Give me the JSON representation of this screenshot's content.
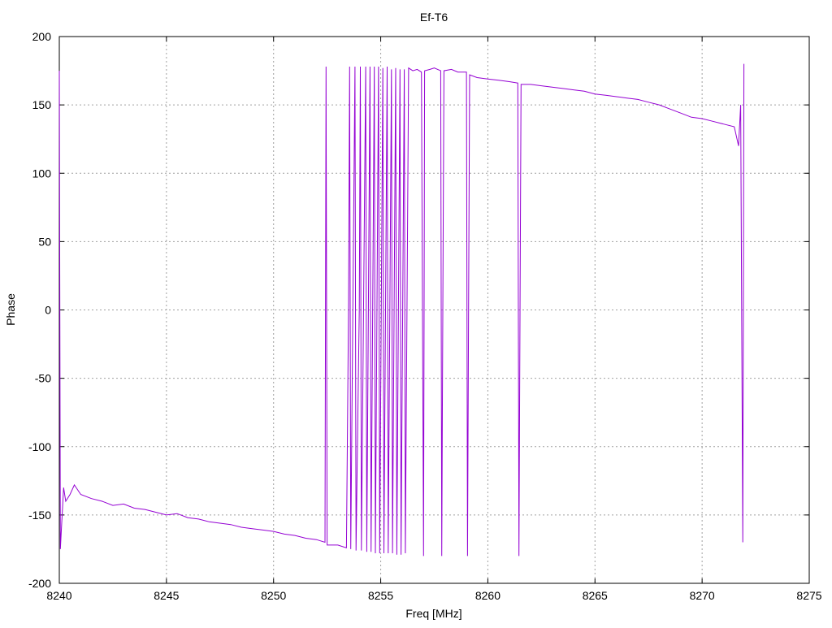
{
  "chart_data": {
    "type": "line",
    "title": "Ef-T6",
    "xlabel": "Freq [MHz]",
    "ylabel": "Phase",
    "xlim": [
      8240,
      8275
    ],
    "ylim": [
      -200,
      200
    ],
    "xticks": [
      8240,
      8245,
      8250,
      8255,
      8260,
      8265,
      8270,
      8275
    ],
    "yticks": [
      -200,
      -150,
      -100,
      -50,
      0,
      50,
      100,
      150,
      200
    ],
    "grid": true,
    "legend": "none",
    "line_color": "#9400d3",
    "series": [
      {
        "points": [
          [
            8240.0,
            175
          ],
          [
            8240.05,
            -175
          ],
          [
            8240.1,
            -160
          ],
          [
            8240.2,
            -130
          ],
          [
            8240.3,
            -140
          ],
          [
            8240.5,
            -135
          ],
          [
            8240.7,
            -128
          ],
          [
            8241.0,
            -135
          ],
          [
            8241.5,
            -138
          ],
          [
            8242.0,
            -140
          ],
          [
            8242.5,
            -143
          ],
          [
            8243.0,
            -142
          ],
          [
            8243.5,
            -145
          ],
          [
            8244.0,
            -146
          ],
          [
            8244.5,
            -148
          ],
          [
            8245.0,
            -150
          ],
          [
            8245.5,
            -149
          ],
          [
            8246.0,
            -152
          ],
          [
            8246.5,
            -153
          ],
          [
            8247.0,
            -155
          ],
          [
            8247.5,
            -156
          ],
          [
            8248.0,
            -157
          ],
          [
            8248.5,
            -159
          ],
          [
            8249.0,
            -160
          ],
          [
            8249.5,
            -161
          ],
          [
            8250.0,
            -162
          ],
          [
            8250.5,
            -164
          ],
          [
            8251.0,
            -165
          ],
          [
            8251.5,
            -167
          ],
          [
            8252.0,
            -168
          ],
          [
            8252.4,
            -170
          ],
          [
            8252.45,
            178
          ],
          [
            8252.5,
            -172
          ],
          [
            8253.0,
            -172
          ],
          [
            8253.4,
            -174
          ],
          [
            8253.5,
            5
          ],
          [
            8253.55,
            178
          ],
          [
            8253.6,
            -175
          ],
          [
            8253.8,
            178
          ],
          [
            8253.85,
            -176
          ],
          [
            8254.0,
            0
          ],
          [
            8254.05,
            178
          ],
          [
            8254.1,
            -176
          ],
          [
            8254.3,
            178
          ],
          [
            8254.35,
            -177
          ],
          [
            8254.5,
            178
          ],
          [
            8254.55,
            -177
          ],
          [
            8254.7,
            178
          ],
          [
            8254.75,
            -178
          ],
          [
            8254.9,
            178
          ],
          [
            8254.95,
            -178
          ],
          [
            8255.1,
            177
          ],
          [
            8255.15,
            -178
          ],
          [
            8255.3,
            178
          ],
          [
            8255.35,
            -178
          ],
          [
            8255.5,
            176
          ],
          [
            8255.55,
            -178
          ],
          [
            8255.7,
            177
          ],
          [
            8255.75,
            -179
          ],
          [
            8255.9,
            176
          ],
          [
            8255.95,
            -179
          ],
          [
            8256.1,
            176
          ],
          [
            8256.15,
            -178
          ],
          [
            8256.3,
            177
          ],
          [
            8256.5,
            175
          ],
          [
            8256.7,
            176
          ],
          [
            8256.9,
            174
          ],
          [
            8257.0,
            -180
          ],
          [
            8257.05,
            175
          ],
          [
            8257.3,
            176
          ],
          [
            8257.5,
            177
          ],
          [
            8257.8,
            175
          ],
          [
            8257.85,
            -180
          ],
          [
            8257.9,
            0
          ],
          [
            8257.95,
            175
          ],
          [
            8258.3,
            176
          ],
          [
            8258.6,
            174
          ],
          [
            8259.0,
            174
          ],
          [
            8259.05,
            -180
          ],
          [
            8259.1,
            0
          ],
          [
            8259.15,
            172
          ],
          [
            8259.5,
            170
          ],
          [
            8260.0,
            169
          ],
          [
            8260.5,
            168
          ],
          [
            8261.0,
            167
          ],
          [
            8261.4,
            166
          ],
          [
            8261.45,
            -180
          ],
          [
            8261.5,
            -5
          ],
          [
            8261.55,
            165
          ],
          [
            8262.0,
            165
          ],
          [
            8262.5,
            164
          ],
          [
            8263.0,
            163
          ],
          [
            8263.5,
            162
          ],
          [
            8264.0,
            161
          ],
          [
            8264.5,
            160
          ],
          [
            8265.0,
            158
          ],
          [
            8265.5,
            157
          ],
          [
            8266.0,
            156
          ],
          [
            8266.5,
            155
          ],
          [
            8267.0,
            154
          ],
          [
            8267.5,
            152
          ],
          [
            8268.0,
            150
          ],
          [
            8268.5,
            147
          ],
          [
            8269.0,
            144
          ],
          [
            8269.5,
            141
          ],
          [
            8270.0,
            140
          ],
          [
            8270.5,
            138
          ],
          [
            8271.0,
            136
          ],
          [
            8271.5,
            134
          ],
          [
            8271.7,
            120
          ],
          [
            8271.8,
            150
          ],
          [
            8271.85,
            -10
          ],
          [
            8271.9,
            -170
          ],
          [
            8271.95,
            180
          ]
        ]
      }
    ]
  }
}
